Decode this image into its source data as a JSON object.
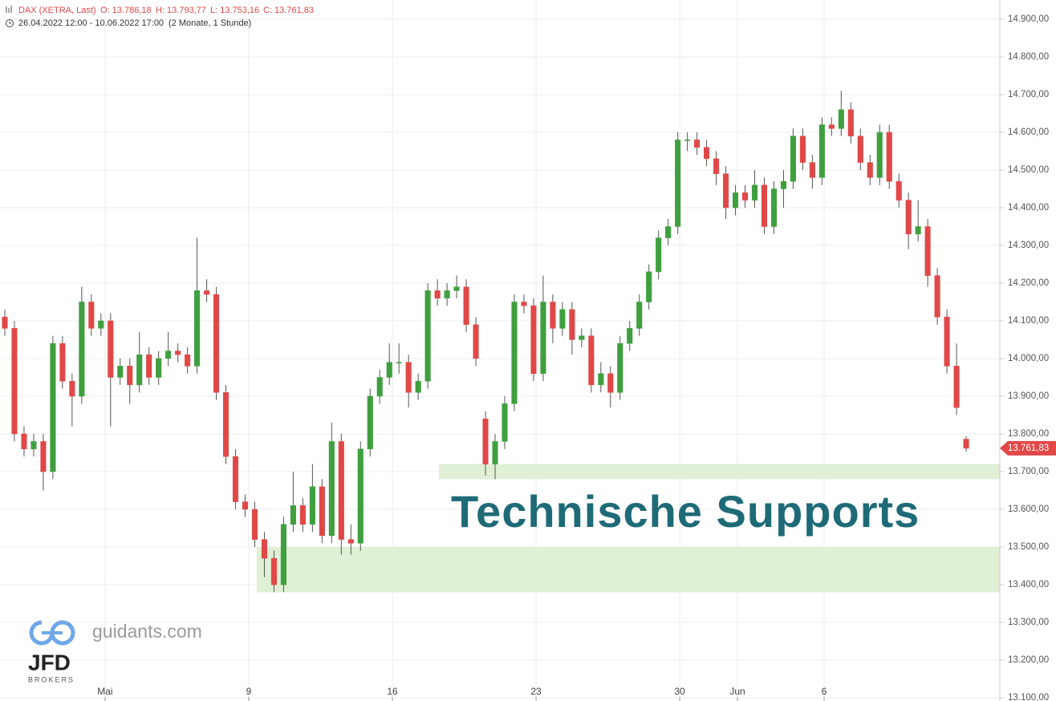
{
  "chart_data": {
    "type": "candlestick",
    "symbol": "DAX (XETRA, Last)",
    "ohlc_labels": [
      "O: 13.786,18",
      "H: 13.793,77",
      "L: 13.753,16",
      "C: 13.761,83"
    ],
    "period": "26.04.2022 12:00 - 10.06.2022 17:00",
    "period_note": "(2 Monate, 1 Stunde)",
    "annotation": "Technische Supports",
    "brand": "guidants.com",
    "logo_text": "JFD",
    "logo_subtext": "BROKERS",
    "last_price": {
      "value": 13761.83,
      "label": "13.761,83"
    },
    "up_color": "#3f9f3f",
    "down_color": "#e04848",
    "zone_color": "#dff0d4",
    "zones": [
      {
        "x_start": 45.66,
        "low": 13680,
        "high": 13720
      },
      {
        "x_start": 26.7,
        "low": 13380,
        "high": 13500
      }
    ],
    "x": [
      0.5,
      1.5,
      2.5,
      3.5,
      4.5,
      5.5,
      6.5,
      7.5,
      8.5,
      9.5,
      10.5,
      11.5,
      12.5,
      13.5,
      14.5,
      15.5,
      16.5,
      17.5,
      18.5,
      19.5,
      20.5,
      21.5,
      22.5,
      23.5,
      24.5,
      25.5,
      26.5,
      27.5,
      28.5,
      29.5,
      30.5,
      31.5,
      32.5,
      33.5,
      34.5,
      35.5,
      36.5,
      37.5,
      38.5,
      39.5,
      40.5,
      41.5,
      42.5,
      43.5,
      44.5,
      45.5,
      46.5,
      47.5,
      48.5,
      49.5,
      50.5,
      51.5,
      52.5,
      53.5,
      54.5,
      55.5,
      56.5,
      57.5,
      58.5,
      59.5,
      60.5,
      61.5,
      62.5,
      63.5,
      64.5,
      65.5,
      66.5,
      67.5,
      68.5,
      69.5,
      70.5,
      71.5,
      72.5,
      73.5,
      74.5,
      75.5,
      76.5,
      77.5,
      78.5,
      79.5,
      80.5,
      81.5,
      82.5,
      83.5,
      84.5,
      85.5,
      86.5,
      87.5,
      88.5,
      89.5,
      90.5,
      91.5,
      92.5,
      93.5,
      94.5,
      95.5,
      96.5,
      97.5,
      98.5,
      99.5,
      100.5
    ],
    "open": [
      14110,
      14080,
      13800,
      13760,
      13780,
      13700,
      14040,
      13940,
      13900,
      14150,
      14080,
      14100,
      13950,
      13980,
      13930,
      14010,
      13950,
      14000,
      14020,
      14010,
      13980,
      14180,
      14170,
      13910,
      13740,
      13620,
      13600,
      13520,
      13470,
      13400,
      13560,
      13610,
      13560,
      13660,
      13530,
      13780,
      13520,
      13510,
      13760,
      13900,
      13950,
      13990,
      13990,
      13910,
      13940,
      14180,
      14160,
      14180,
      14190,
      14090,
      13840,
      13720,
      13780,
      13880,
      14150,
      14140,
      13960,
      14150,
      14080,
      14130,
      14050,
      14060,
      13930,
      13960,
      13910,
      14040,
      14080,
      14150,
      14230,
      14320,
      14350,
      14580,
      14580,
      14560,
      14530,
      14490,
      14400,
      14440,
      14420,
      14460,
      14350,
      14450,
      14470,
      14590,
      14520,
      14480,
      14620,
      14610,
      14660,
      14590,
      14520,
      14480,
      14600,
      14470,
      14420,
      14330,
      14350,
      14220,
      14110,
      13980,
      13786.18
    ],
    "high": [
      14130,
      14100,
      13820,
      13800,
      13800,
      14060,
      14060,
      13960,
      14190,
      14170,
      14120,
      14120,
      14000,
      14000,
      14070,
      14030,
      14020,
      14070,
      14040,
      14030,
      14320,
      14210,
      14190,
      13930,
      13760,
      13640,
      13620,
      13540,
      13490,
      13580,
      13700,
      13630,
      13720,
      13680,
      13830,
      13800,
      13560,
      13780,
      13920,
      13970,
      14040,
      14040,
      14010,
      13960,
      14200,
      14210,
      14200,
      14220,
      14210,
      14110,
      13860,
      13800,
      13900,
      14170,
      14170,
      14160,
      14220,
      14170,
      14150,
      14150,
      14080,
      14080,
      13990,
      13980,
      14060,
      14100,
      14170,
      14250,
      14340,
      14370,
      14600,
      14600,
      14600,
      14580,
      14550,
      14510,
      14460,
      14460,
      14500,
      14480,
      14470,
      14500,
      14610,
      14610,
      14540,
      14640,
      14640,
      14710,
      14680,
      14610,
      14540,
      14620,
      14620,
      14490,
      14440,
      14420,
      14370,
      14240,
      14130,
      14040,
      13793.77
    ],
    "low": [
      14060,
      13780,
      13740,
      13740,
      13650,
      13680,
      13920,
      13820,
      13880,
      14060,
      14060,
      13820,
      13930,
      13880,
      13910,
      13930,
      13930,
      13980,
      13990,
      13960,
      13960,
      14150,
      13890,
      13720,
      13600,
      13580,
      13500,
      13420,
      13380,
      13380,
      13540,
      13540,
      13540,
      13510,
      13510,
      13480,
      13480,
      13490,
      13740,
      13880,
      13930,
      13960,
      13870,
      13890,
      13920,
      14140,
      14140,
      14160,
      14070,
      13980,
      13690,
      13680,
      13760,
      13860,
      14120,
      13940,
      13940,
      14040,
      14060,
      14010,
      14030,
      13910,
      13910,
      13870,
      13890,
      14020,
      14060,
      14130,
      14210,
      14300,
      14330,
      14550,
      14540,
      14510,
      14460,
      14370,
      14380,
      14400,
      14400,
      14330,
      14330,
      14400,
      14450,
      14500,
      14450,
      14460,
      14590,
      14590,
      14570,
      14500,
      14460,
      14460,
      14450,
      14400,
      14290,
      14310,
      14190,
      14090,
      13960,
      13850,
      13753.16
    ],
    "close": [
      14080,
      13800,
      13760,
      13780,
      13700,
      14040,
      13940,
      13900,
      14150,
      14080,
      14100,
      13950,
      13980,
      13930,
      14010,
      13950,
      14000,
      14020,
      14010,
      13980,
      14180,
      14170,
      13910,
      13740,
      13620,
      13600,
      13520,
      13470,
      13400,
      13560,
      13610,
      13560,
      13660,
      13530,
      13780,
      13520,
      13510,
      13760,
      13900,
      13950,
      13990,
      13990,
      13910,
      13940,
      14180,
      14160,
      14180,
      14190,
      14090,
      14000,
      13720,
      13780,
      13880,
      14150,
      14140,
      13960,
      14150,
      14080,
      14130,
      14050,
      14060,
      13930,
      13960,
      13910,
      14040,
      14080,
      14150,
      14230,
      14320,
      14350,
      14580,
      14580,
      14560,
      14530,
      14490,
      14400,
      14440,
      14420,
      14460,
      14350,
      14450,
      14470,
      14590,
      14520,
      14480,
      14620,
      14610,
      14660,
      14590,
      14520,
      14480,
      14600,
      14470,
      14420,
      14330,
      14350,
      14220,
      14110,
      13980,
      13870,
      13761.83
    ],
    "xlim": [
      0,
      104
    ],
    "xticks": [
      {
        "value": 10.93,
        "label": "Mai"
      },
      {
        "value": 25.87,
        "label": "9"
      },
      {
        "value": 40.82,
        "label": "16"
      },
      {
        "value": 55.76,
        "label": "23"
      },
      {
        "value": 70.7,
        "label": "30"
      },
      {
        "value": 76.71,
        "label": "Jun"
      },
      {
        "value": 85.72,
        "label": "6"
      }
    ],
    "ylim": [
      13091.5,
      14951
    ],
    "yticks": [
      {
        "value": 13100,
        "label": "13.100,00"
      },
      {
        "value": 13200,
        "label": "13.200,00"
      },
      {
        "value": 13300,
        "label": "13.300,00"
      },
      {
        "value": 13400,
        "label": "13.400,00"
      },
      {
        "value": 13500,
        "label": "13.500,00"
      },
      {
        "value": 13600,
        "label": "13.600,00"
      },
      {
        "value": 13700,
        "label": "13.700,00"
      },
      {
        "value": 13800,
        "label": "13.800,00"
      },
      {
        "value": 13900,
        "label": "13.900,00"
      },
      {
        "value": 14000,
        "label": "14.000,00"
      },
      {
        "value": 14100,
        "label": "14.100,00"
      },
      {
        "value": 14200,
        "label": "14.200,00"
      },
      {
        "value": 14300,
        "label": "14.300,00"
      },
      {
        "value": 14400,
        "label": "14.400,00"
      },
      {
        "value": 14500,
        "label": "14.500,00"
      },
      {
        "value": 14600,
        "label": "14.600,00"
      },
      {
        "value": 14700,
        "label": "14.700,00"
      },
      {
        "value": 14800,
        "label": "14.800,00"
      },
      {
        "value": 14900,
        "label": "14.900,00"
      }
    ],
    "grid": true
  }
}
